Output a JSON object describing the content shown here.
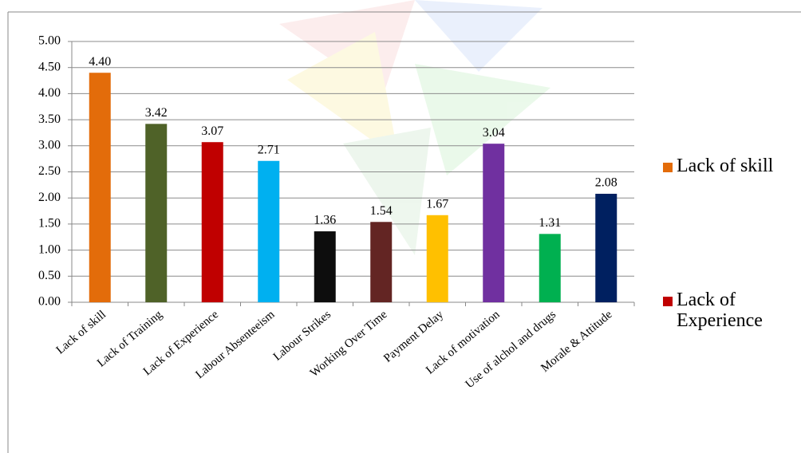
{
  "chart_data": {
    "type": "bar",
    "categories": [
      "Lack of skill",
      "Lack of Training",
      "Lack of Experience",
      "Labour Absenteeism",
      "Labour Strikes",
      "Working Over Time",
      "Payment Delay",
      "Lack of motivation",
      "Use of alchol and drugs",
      "Morale & Attitude"
    ],
    "values": [
      4.4,
      3.42,
      3.07,
      2.71,
      1.36,
      1.54,
      1.67,
      3.04,
      1.31,
      2.08
    ],
    "value_labels": [
      "4.40",
      "3.42",
      "3.07",
      "2.71",
      "1.36",
      "1.54",
      "1.67",
      "3.04",
      "1.31",
      "2.08"
    ],
    "colors": [
      "#e36c0a",
      "#4f6228",
      "#c00000",
      "#00b0f0",
      "#0d0d0d",
      "#632523",
      "#ffc000",
      "#7030a0",
      "#00b050",
      "#002060"
    ],
    "ylim": [
      0,
      5
    ],
    "yticks": [
      {
        "value": 0,
        "label": "0.00"
      },
      {
        "value": 0.5,
        "label": "0.50"
      },
      {
        "value": 1,
        "label": "1.00"
      },
      {
        "value": 1.5,
        "label": "1.50"
      },
      {
        "value": 2,
        "label": "2.00"
      },
      {
        "value": 2.5,
        "label": "2.50"
      },
      {
        "value": 3,
        "label": "3.00"
      },
      {
        "value": 3.5,
        "label": "3.50"
      },
      {
        "value": 4,
        "label": "4.00"
      },
      {
        "value": 4.5,
        "label": "4.50"
      },
      {
        "value": 5,
        "label": "5.00"
      }
    ],
    "grid": true,
    "legend_position": "right",
    "legend": [
      {
        "name": "Lack of skill",
        "color": "#e36c0a"
      },
      {
        "name": "Lack of Experience",
        "color": "#c00000"
      }
    ]
  }
}
